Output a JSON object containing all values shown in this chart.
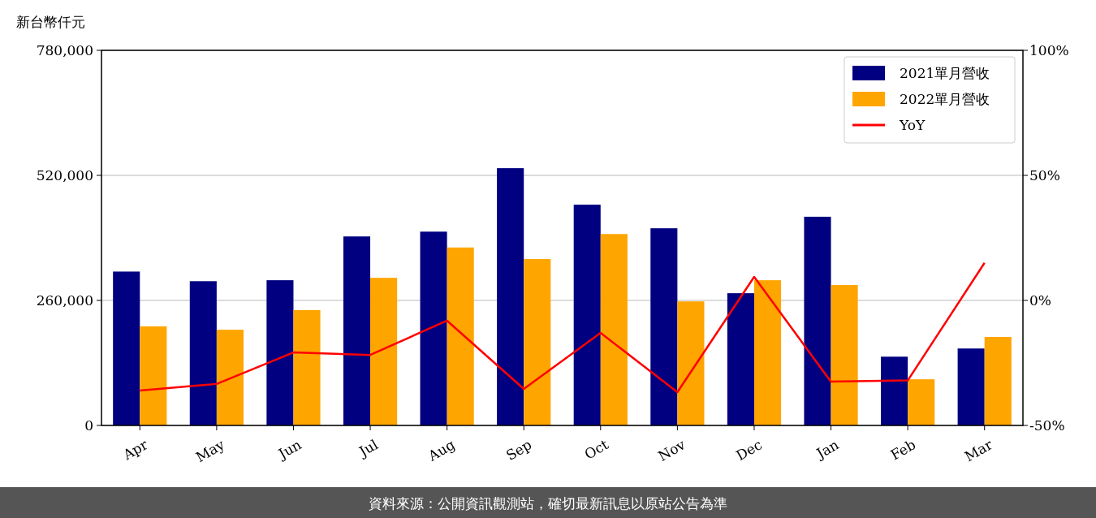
{
  "chart_data": {
    "type": "bar",
    "ylabel": "新台幣仟元",
    "categories": [
      "Apr",
      "May",
      "Jun",
      "Jul",
      "Aug",
      "Sep",
      "Oct",
      "Nov",
      "Dec",
      "Jan",
      "Feb",
      "Mar"
    ],
    "series": [
      {
        "name": "2021單月營收",
        "color": "#000080",
        "values": [
          320000,
          300000,
          302000,
          393000,
          403000,
          535000,
          459000,
          410000,
          275000,
          434000,
          143000,
          160000
        ]
      },
      {
        "name": "2022單月營收",
        "color": "#ffa500",
        "values": [
          206000,
          199000,
          240000,
          307000,
          370000,
          346000,
          398000,
          258000,
          302000,
          292000,
          96000,
          184000
        ]
      },
      {
        "name": "YoY",
        "type": "line",
        "axis": "y2",
        "color": "#ff0000",
        "values": [
          -36,
          -33.4,
          -20.8,
          -21.8,
          -8.1,
          -35.4,
          -13,
          -36.7,
          9.4,
          -32.5,
          -32,
          15
        ]
      }
    ],
    "ylim": [
      0,
      780000
    ],
    "yticks": [
      {
        "value": 0,
        "label": "0"
      },
      {
        "value": 260000,
        "label": "260,000"
      },
      {
        "value": 520000,
        "label": "520,000"
      },
      {
        "value": 780000,
        "label": "780,000"
      }
    ],
    "y2lim": [
      -50,
      100
    ],
    "y2ticks": [
      {
        "value": -50,
        "label": "-50%"
      },
      {
        "value": 0,
        "label": "0%"
      },
      {
        "value": 50,
        "label": "50%"
      },
      {
        "value": 100,
        "label": "100%"
      }
    ],
    "grid": "y",
    "legend": "top right",
    "marker": "none",
    "line_style": "solid",
    "annotations": [
      "資料來源：公開資訊觀測站，確切最新訊息以原站公告為準"
    ]
  }
}
